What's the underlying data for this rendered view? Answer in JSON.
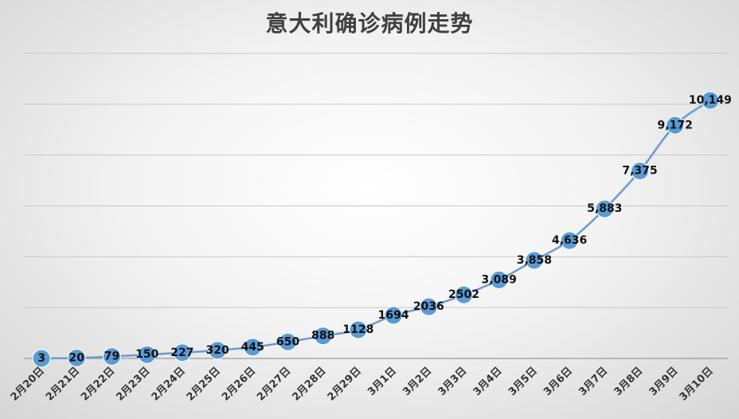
{
  "chart_data": {
    "type": "line",
    "title": "意大利确诊病例走势",
    "categories": [
      "2月20日",
      "2月21日",
      "2月22日",
      "2月23日",
      "2月24日",
      "2月25日",
      "2月26日",
      "2月27日",
      "2月28日",
      "2月29日",
      "3月1日",
      "3月2日",
      "3月3日",
      "3月4日",
      "3月5日",
      "3月6日",
      "3月7日",
      "3月8日",
      "3月9日",
      "3月10日"
    ],
    "series": [
      {
        "values": [
          3,
          20,
          79,
          150,
          227,
          320,
          445,
          650,
          888,
          1128,
          1694,
          2036,
          2502,
          3089,
          3858,
          4636,
          5883,
          7375,
          9172,
          10149
        ],
        "labels": [
          "3",
          "20",
          "79",
          "150",
          "227",
          "320",
          "445",
          "650",
          "888",
          "1128",
          "1694",
          "2036",
          "2502",
          "3,089",
          "3,858",
          "4,636",
          "5,883",
          "7,375",
          "9,172",
          "10,149"
        ]
      }
    ],
    "ylim": [
      0,
      12000
    ],
    "y_axis_labels_shown": false,
    "grid": true,
    "legend": "none",
    "colors": {
      "line": "#6d9ad0",
      "marker": "#5b9bd5",
      "background_center": "#ffffff",
      "background_edge": "#d6d6d6"
    }
  }
}
